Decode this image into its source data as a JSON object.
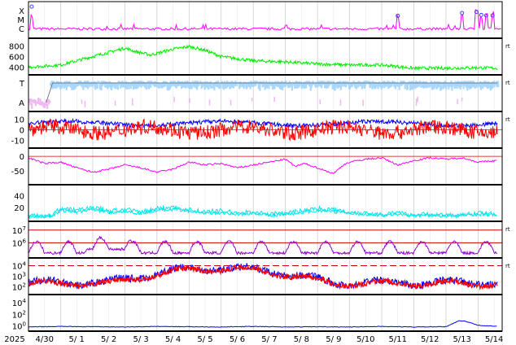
{
  "chart_data": {
    "type": "line",
    "x_ticks": [
      "2025",
      "4/30",
      "5/ 1",
      "5/ 2",
      "5/ 3",
      "5/ 4",
      "5/ 5",
      "5/ 6",
      "5/ 7",
      "5/ 8",
      "5/ 9",
      "5/10",
      "5/11",
      "5/12",
      "5/13",
      "5/14"
    ],
    "colors": {
      "magenta": "#ff00ff",
      "green": "#00ee00",
      "lightblue": "#a8d8ff",
      "pink": "#f0b8f0",
      "blue": "#0000ff",
      "red": "#ff0000",
      "purple": "#9900cc",
      "cyan": "#00e5ee",
      "darkred": "#cc0000"
    },
    "panels": [
      {
        "id": "flare",
        "yticks": [
          "X",
          "M",
          "C"
        ],
        "right": "",
        "flare_events_day": [
          0.1,
          11.5,
          13.5,
          13.95,
          14.1,
          14.25,
          14.45
        ]
      },
      {
        "id": "wind-speed",
        "yticks": [
          "800",
          "600",
          "400"
        ],
        "ylim": [
          300,
          900
        ],
        "right": "rt",
        "series": [
          {
            "name": "",
            "color": "green",
            "x": [
              0,
              1,
              2,
              2.5,
              3,
              3.3,
              3.8,
              4.5,
              5,
              5.5,
              6,
              7,
              8,
              9,
              10,
              11,
              12,
              13,
              14,
              14.6
            ],
            "y": [
              400,
              440,
              600,
              680,
              760,
              700,
              630,
              740,
              790,
              720,
              600,
              520,
              500,
              460,
              440,
              440,
              380,
              380,
              390,
              380
            ]
          }
        ]
      },
      {
        "id": "field-direction",
        "yticks": [
          "T",
          "A"
        ],
        "right": "rt",
        "switch_day": 0.65
      },
      {
        "id": "imf-bz",
        "yticks": [
          "10",
          "0",
          "-10"
        ],
        "ylim": [
          -15,
          15
        ],
        "right": "rt",
        "series": [
          {
            "name": "",
            "color": "blue"
          },
          {
            "name": "",
            "color": "red"
          }
        ]
      },
      {
        "id": "dst",
        "yticks": [
          "0",
          "-50"
        ],
        "ylim": [
          -90,
          20
        ],
        "right": "",
        "series": [
          {
            "name": "",
            "color": "magenta",
            "x": [
              0,
              0.5,
              1,
              1.5,
              2,
              2.5,
              3,
              3.5,
              4,
              4.5,
              5,
              5.5,
              6,
              6.5,
              7,
              7.5,
              8,
              8.3,
              8.6,
              9,
              9.5,
              9.8,
              10,
              10.5,
              11,
              11.3,
              11.5,
              12,
              12.5,
              13,
              13.5,
              14,
              14.6
            ],
            "y": [
              -5,
              -25,
              -20,
              -40,
              -55,
              -45,
              -30,
              -40,
              -55,
              -45,
              -20,
              -30,
              -25,
              -40,
              -30,
              -20,
              -10,
              -35,
              -25,
              -40,
              -60,
              -30,
              -20,
              -10,
              -5,
              -20,
              -30,
              -15,
              -5,
              -10,
              -5,
              -20,
              -15
            ]
          }
        ]
      },
      {
        "id": "kp-ap",
        "yticks": [
          "40",
          "20"
        ],
        "ylim": [
          0,
          55
        ],
        "right": "",
        "series": [
          {
            "name": "",
            "color": "cyan",
            "x": [
              0,
              0.7,
              1,
              1.5,
              2,
              2.5,
              3,
              3.5,
              4,
              4.5,
              5,
              5.5,
              6,
              6.5,
              7,
              7.5,
              8,
              8.5,
              9,
              9.5,
              10,
              10.5,
              11,
              11.5,
              12,
              12.5,
              13,
              13.5,
              14,
              14.6
            ],
            "y": [
              5,
              6,
              18,
              15,
              20,
              14,
              16,
              12,
              18,
              20,
              16,
              12,
              14,
              10,
              12,
              8,
              10,
              14,
              18,
              16,
              12,
              10,
              8,
              10,
              7,
              8,
              6,
              7,
              10,
              8
            ]
          }
        ]
      },
      {
        "id": "electron-flux",
        "yticks": [
          "10^7",
          "10^6"
        ],
        "ylog": [
          5,
          7.5
        ],
        "right": "rt",
        "thresholds": [
          7,
          6
        ],
        "series": [
          {
            "name": "",
            "color": "purple"
          }
        ]
      },
      {
        "id": "proton-flux",
        "yticks": [
          "10^4",
          "10^3",
          "10^2"
        ],
        "ylog": [
          1.5,
          4.5
        ],
        "right": "rt",
        "dashed_threshold": 4,
        "series": [
          {
            "name": "",
            "color": "blue"
          },
          {
            "name": "",
            "color": "red"
          }
        ]
      },
      {
        "id": "xray-low",
        "yticks": [
          "10^4",
          "10^2",
          "10^0"
        ],
        "ylog": [
          -0.5,
          5
        ],
        "right": "",
        "series": [
          {
            "name": "",
            "color": "blue",
            "x": [
              0,
              1,
              2,
              3,
              4,
              5,
              6,
              7,
              8,
              9,
              10,
              11,
              12,
              13,
              13.4,
              13.6,
              14,
              14.6
            ],
            "y": [
              -0.2,
              -0.1,
              -0.15,
              -0.2,
              -0.1,
              -0.15,
              -0.2,
              -0.1,
              -0.2,
              -0.15,
              -0.2,
              -0.1,
              -0.2,
              -0.15,
              0.9,
              0.8,
              0.1,
              -0.1
            ]
          }
        ]
      }
    ]
  }
}
